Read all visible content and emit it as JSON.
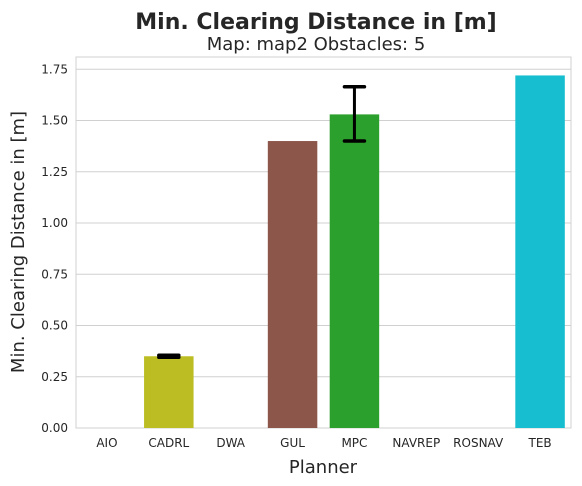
{
  "chart_data": {
    "type": "bar",
    "title": "Min. Clearing Distance in [m]",
    "subtitle": "Map: map2 Obstacles: 5",
    "xlabel": "Planner",
    "ylabel": "Min. Clearing Distance in [m]",
    "categories": [
      "AIO",
      "CADRL",
      "DWA",
      "GUL",
      "MPC",
      "NAVREP",
      "ROSNAV",
      "TEB"
    ],
    "values": [
      null,
      0.35,
      null,
      1.4,
      1.53,
      null,
      null,
      1.72
    ],
    "error_bars": [
      null,
      [
        0.345,
        0.355
      ],
      null,
      null,
      [
        1.4,
        1.665
      ],
      null,
      null,
      null
    ],
    "colors": [
      "#1f77b4",
      "#bcbd22",
      "#7f7f7f",
      "#8c564b",
      "#2ca02c",
      "#ff7f0e",
      "#9467bd",
      "#17becf"
    ],
    "ylim": [
      0,
      1.81
    ],
    "yticks": [
      "0.00",
      "0.25",
      "0.50",
      "0.75",
      "1.00",
      "1.25",
      "1.50",
      "1.75"
    ],
    "grid": "horizontal",
    "legend": "none"
  }
}
